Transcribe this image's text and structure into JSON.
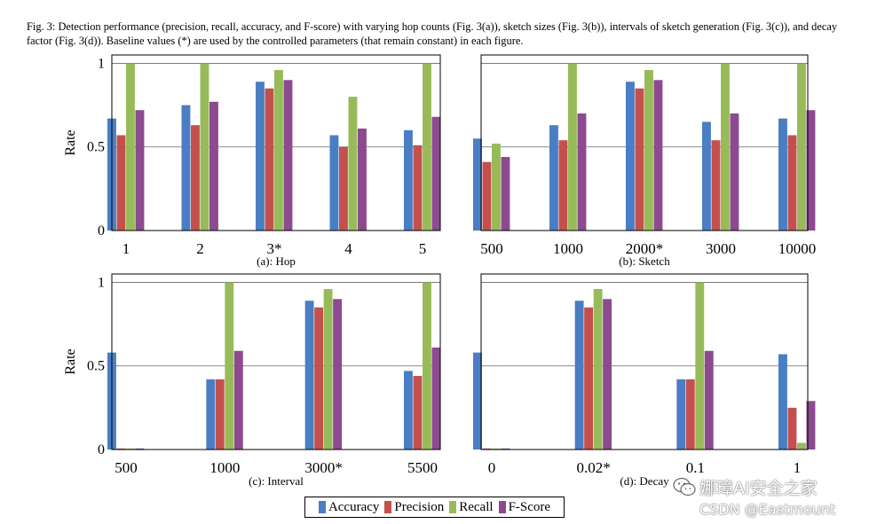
{
  "caption": "Fig. 3: Detection performance (precision, recall, accuracy, and F-score) with varying hop counts (Fig. 3(a)), sketch sizes (Fig. 3(b)), intervals of sketch generation (Fig. 3(c)), and decay factor (Fig. 3(d)). Baseline values (*) are used by the controlled parameters (that remain constant) in each figure.",
  "colors": {
    "accuracy": "#4a7ec4",
    "precision": "#c4504e",
    "recall": "#98bb59",
    "fscore": "#8c4a8f"
  },
  "legend": [
    "Accuracy",
    "Precision",
    "Recall",
    "F-Score"
  ],
  "watermark": {
    "line1": "娜璋AI安全之家",
    "line2": "CSDN @Eastmount"
  },
  "chart_data": [
    {
      "type": "bar",
      "title": "(a): Hop",
      "ylabel": "Rate",
      "ylim": [
        0,
        1.05
      ],
      "yticks": [
        "0",
        "0.5",
        "1"
      ],
      "categories": [
        "1",
        "2",
        "3*",
        "4",
        "5"
      ],
      "series": [
        {
          "name": "Accuracy",
          "values": [
            0.67,
            0.75,
            0.89,
            0.57,
            0.6
          ]
        },
        {
          "name": "Precision",
          "values": [
            0.57,
            0.63,
            0.85,
            0.5,
            0.51
          ]
        },
        {
          "name": "Recall",
          "values": [
            1.0,
            1.0,
            0.96,
            0.8,
            1.0
          ]
        },
        {
          "name": "F-Score",
          "values": [
            0.72,
            0.77,
            0.9,
            0.61,
            0.68
          ]
        }
      ]
    },
    {
      "type": "bar",
      "title": "(b): Sketch",
      "ylabel": "",
      "ylim": [
        0,
        1.05
      ],
      "yticks": [],
      "categories": [
        "500",
        "1000",
        "2000*",
        "3000",
        "10000"
      ],
      "series": [
        {
          "name": "Accuracy",
          "values": [
            0.55,
            0.63,
            0.89,
            0.65,
            0.67
          ]
        },
        {
          "name": "Precision",
          "values": [
            0.41,
            0.54,
            0.85,
            0.54,
            0.57
          ]
        },
        {
          "name": "Recall",
          "values": [
            0.52,
            1.0,
            0.96,
            1.0,
            1.0
          ]
        },
        {
          "name": "F-Score",
          "values": [
            0.44,
            0.7,
            0.9,
            0.7,
            0.72
          ]
        }
      ]
    },
    {
      "type": "bar",
      "title": "(c): Interval",
      "ylabel": "Rate",
      "ylim": [
        0,
        1.05
      ],
      "yticks": [
        "0",
        "0.5",
        "1"
      ],
      "categories": [
        "500",
        "1000",
        "3000*",
        "5500"
      ],
      "series": [
        {
          "name": "Accuracy",
          "values": [
            0.58,
            0.42,
            0.89,
            0.47
          ]
        },
        {
          "name": "Precision",
          "values": [
            0.0,
            0.42,
            0.85,
            0.44
          ]
        },
        {
          "name": "Recall",
          "values": [
            0.0,
            1.0,
            0.96,
            1.0
          ]
        },
        {
          "name": "F-Score",
          "values": [
            0.0,
            0.59,
            0.9,
            0.61
          ]
        }
      ]
    },
    {
      "type": "bar",
      "title": "(d): Decay",
      "ylabel": "",
      "ylim": [
        0,
        1.05
      ],
      "yticks": [],
      "categories": [
        "0",
        "0.02*",
        "0.1",
        "1"
      ],
      "series": [
        {
          "name": "Accuracy",
          "values": [
            0.58,
            0.89,
            0.42,
            0.57
          ]
        },
        {
          "name": "Precision",
          "values": [
            0.0,
            0.85,
            0.42,
            0.25
          ]
        },
        {
          "name": "Recall",
          "values": [
            0.0,
            0.96,
            1.0,
            0.04
          ]
        },
        {
          "name": "F-Score",
          "values": [
            0.0,
            0.9,
            0.59,
            0.29
          ]
        }
      ]
    }
  ]
}
